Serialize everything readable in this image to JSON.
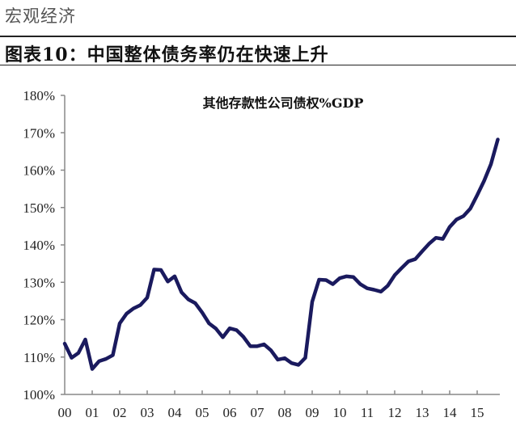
{
  "header": {
    "section": "宏观经济",
    "figure_title": "图表10：中国整体债务率仍在快速上升"
  },
  "chart_data": {
    "type": "line",
    "title": "其他存款性公司债权%GDP",
    "xlabel": "",
    "ylabel": "",
    "ylim": [
      100,
      180
    ],
    "y_ticks": [
      "100%",
      "110%",
      "120%",
      "130%",
      "140%",
      "150%",
      "160%",
      "170%",
      "180%"
    ],
    "x_ticks": [
      "00",
      "01",
      "02",
      "03",
      "04",
      "05",
      "06",
      "07",
      "08",
      "09",
      "10",
      "11",
      "12",
      "13",
      "14",
      "15"
    ],
    "frequency": "quarterly, 2000Q1-2015Q4",
    "grid": false,
    "line_color": "#1a1a5e",
    "series": [
      {
        "name": "其他存款性公司债权%GDP",
        "values": [
          113.6,
          109.8,
          111.1,
          114.7,
          106.8,
          108.9,
          109.5,
          110.5,
          119.0,
          121.6,
          123.0,
          123.9,
          125.9,
          133.4,
          133.3,
          130.2,
          131.6,
          127.3,
          125.4,
          124.4,
          121.9,
          119.0,
          117.6,
          115.3,
          117.7,
          117.2,
          115.4,
          112.9,
          112.9,
          113.4,
          111.8,
          109.3,
          109.7,
          108.4,
          107.9,
          109.8,
          124.8,
          130.7,
          130.6,
          129.5,
          131.1,
          131.6,
          131.4,
          129.5,
          128.4,
          128.0,
          127.5,
          129.1,
          131.9,
          133.8,
          135.6,
          136.2,
          138.3,
          140.3,
          141.9,
          141.6,
          144.8,
          146.8,
          147.7,
          149.7,
          153.3,
          157.1,
          161.6,
          168.2
        ]
      }
    ]
  }
}
